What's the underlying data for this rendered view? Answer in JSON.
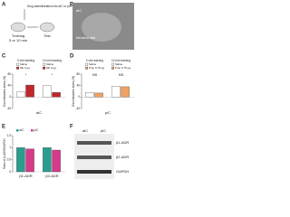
{
  "panels": {
    "letters": [
      "A",
      "B",
      "C",
      "D",
      "E",
      "F"
    ],
    "a": {
      "note": "Drug administration into aIC or pIC",
      "training": "Training",
      "interval": "5 or 10 min",
      "test": "Test"
    },
    "b": {
      "region": "aIC",
      "site": "Infusion site"
    },
    "f": {
      "lanes": [
        "aIC",
        "pIC"
      ],
      "bands": [
        "β1-ADR",
        "β2-ADR",
        "GAPDH"
      ]
    }
  },
  "chart_data": [
    {
      "type": "bar",
      "ylabel": "Discrimination index (%)",
      "xlabel": "aIC",
      "categories": [
        "0 min training",
        "10 min training"
      ],
      "series": [
        {
          "name": "Saline",
          "color": "#ffffff",
          "values": [
            18,
            40
          ]
        },
        {
          "name": "NE 3 µg",
          "color": "#c0272d",
          "values": [
            42,
            16
          ]
        }
      ],
      "annotations": [
        "*",
        "*"
      ],
      "ylim": [
        -40,
        80
      ],
      "yticks": [
        -40,
        0,
        40,
        80
      ]
    },
    {
      "type": "bar",
      "ylabel": "Discrimination index (%)",
      "xlabel": "pIC",
      "categories": [
        "0 min training",
        "10 min training"
      ],
      "series": [
        {
          "name": "Saline",
          "color": "#ffffff",
          "values": [
            16,
            38
          ]
        },
        {
          "name": "Prop 0.75 µg",
          "color": "#f0a060",
          "values": [
            14,
            36
          ]
        }
      ],
      "annotations": [
        "NS",
        "NS"
      ],
      "ylim": [
        -40,
        80
      ],
      "yticks": [
        -40,
        0,
        40,
        80
      ]
    },
    {
      "type": "bar",
      "ylabel": "Ratio of β-ADR/GAPDH",
      "categories": [
        "β1-ADR",
        "β2-ADR"
      ],
      "series": [
        {
          "name": "aIC",
          "color": "#2a9d8f",
          "values": [
            1,
            1
          ]
        },
        {
          "name": "pIC",
          "color": "#d63a8a",
          "values": [
            0.95,
            0.9
          ]
        }
      ],
      "ylim": [
        0,
        1.5
      ],
      "yticks": [
        0,
        0.5,
        1,
        1.5
      ]
    }
  ]
}
